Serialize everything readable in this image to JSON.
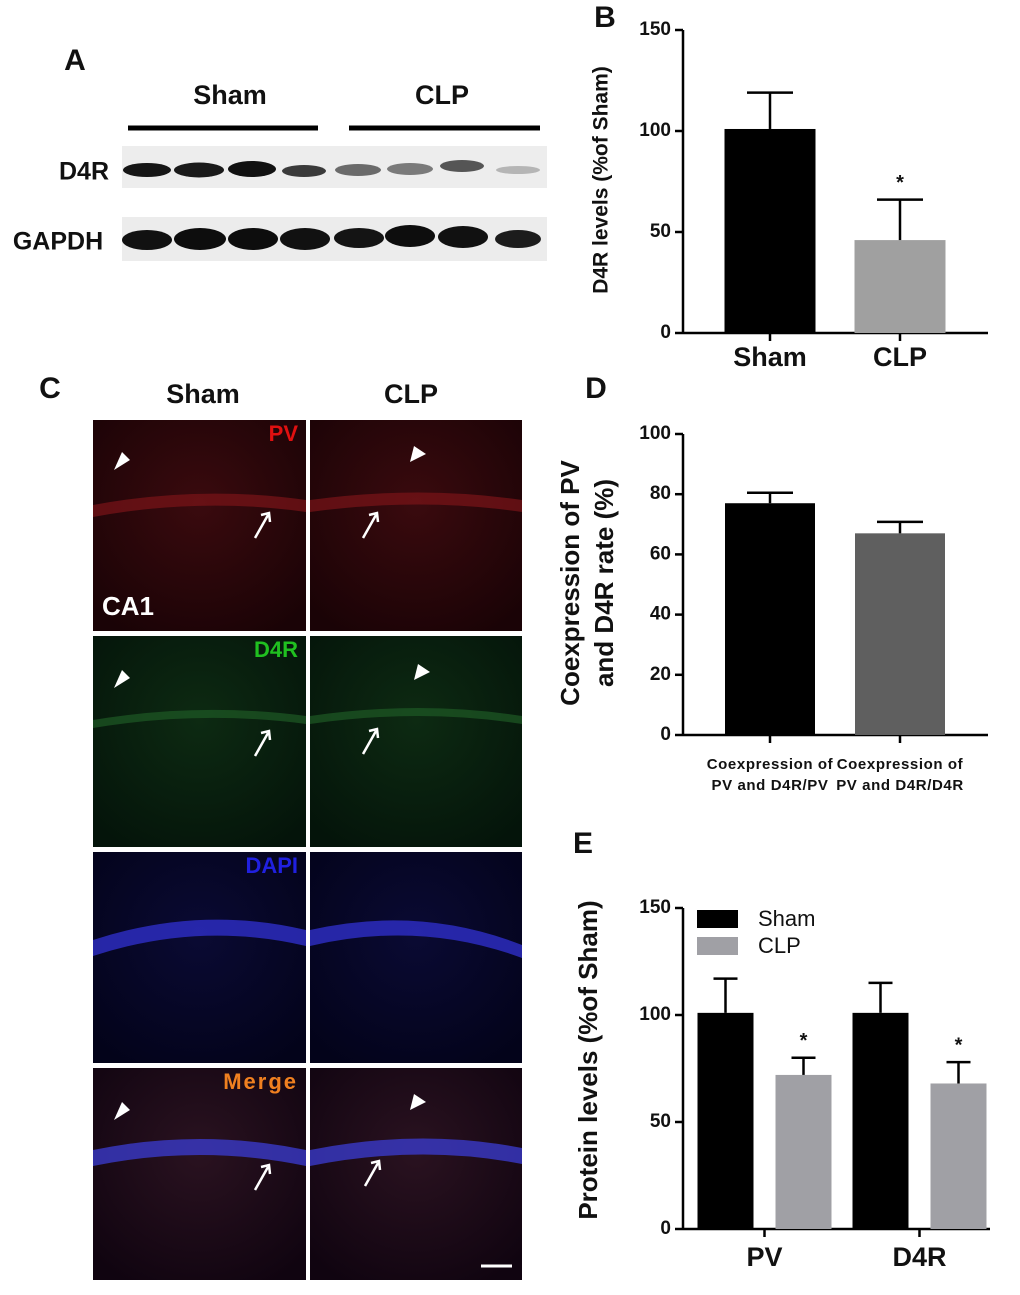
{
  "panel_labels": [
    "A",
    "B",
    "C",
    "D",
    "E"
  ],
  "blot": {
    "groups": [
      "Sham",
      "CLP"
    ],
    "rows": [
      "D4R",
      "GAPDH"
    ]
  },
  "images": {
    "columns": [
      "Sham",
      "CLP"
    ],
    "channels": [
      "PV",
      "D4R",
      "DAPI",
      "Merge"
    ],
    "region": "CA1"
  },
  "chart_data": [
    {
      "type": "bar",
      "ylabel": "D4R levels (%of Sham)",
      "categories": [
        "Sham",
        "CLP"
      ],
      "values": [
        101,
        46
      ],
      "errors": [
        18,
        20
      ],
      "colors": [
        "#000000",
        "#a0a0a0"
      ],
      "value_annotations": [
        null,
        "*"
      ],
      "ylim": [
        0,
        150
      ],
      "yticks": [
        0,
        50,
        100,
        150
      ]
    },
    {
      "type": "bar",
      "ylabel": [
        "Coexpression of PV",
        "and D4R rate (%)"
      ],
      "categories": [
        [
          "Coexpression of",
          "PV and D4R/PV"
        ],
        [
          "Coexpression of",
          "PV and D4R/D4R"
        ]
      ],
      "values": [
        77,
        67
      ],
      "errors": [
        3.5,
        3.8
      ],
      "colors": [
        "#000000",
        "#5f5f5f"
      ],
      "ylim": [
        0,
        100
      ],
      "yticks": [
        0,
        20,
        40,
        60,
        80,
        100
      ]
    },
    {
      "type": "grouped_bar",
      "ylabel": "Protein levels (%of Sham)",
      "categories": [
        "PV",
        "D4R"
      ],
      "series": [
        {
          "name": "Sham",
          "color": "#000000",
          "values": [
            101,
            101
          ],
          "errors": [
            16,
            14
          ]
        },
        {
          "name": "CLP",
          "color": "#a0a0a5",
          "values": [
            72,
            68
          ],
          "errors": [
            8,
            10
          ],
          "value_annotations": [
            "*",
            "*"
          ]
        }
      ],
      "legend": "top-left",
      "ylim": [
        0,
        150
      ],
      "yticks": [
        0,
        50,
        100,
        150
      ]
    }
  ]
}
